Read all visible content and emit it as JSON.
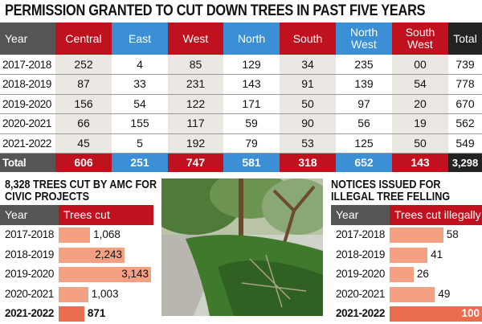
{
  "title": "PERMISSION GRANTED TO CUT DOWN TREES IN PAST FIVE YEARS",
  "colors": {
    "red": "#c0111f",
    "blue": "#3b8fd4",
    "gray": "#555555",
    "black": "#222222",
    "bar": "#f4a082",
    "bar_highlight": "#eb6d50"
  },
  "chart_data": [
    {
      "type": "table",
      "title": "PERMISSION GRANTED TO CUT DOWN TREES IN PAST FIVE YEARS",
      "columns": [
        "Year",
        "Central",
        "East",
        "West",
        "North",
        "South",
        "North West",
        "South West",
        "Total"
      ],
      "rows": [
        [
          "2017-2018",
          "252",
          "4",
          "85",
          "129",
          "34",
          "235",
          "00",
          "739"
        ],
        [
          "2018-2019",
          "87",
          "33",
          "231",
          "143",
          "91",
          "139",
          "54",
          "778"
        ],
        [
          "2019-2020",
          "156",
          "54",
          "122",
          "171",
          "50",
          "97",
          "20",
          "670"
        ],
        [
          "2020-2021",
          "66",
          "155",
          "117",
          "59",
          "90",
          "56",
          "19",
          "562"
        ],
        [
          "2021-2022",
          "45",
          "5",
          "192",
          "79",
          "53",
          "125",
          "50",
          "549"
        ]
      ],
      "total": [
        "Total",
        "606",
        "251",
        "747",
        "581",
        "318",
        "652",
        "143",
        "3,298"
      ]
    },
    {
      "type": "bar",
      "orientation": "horizontal",
      "title": "8,328 TREES CUT BY AMC FOR CIVIC PROJECTS",
      "xlabel": "Year",
      "ylabel": "Trees cut",
      "categories": [
        "2017-2018",
        "2018-2019",
        "2019-2020",
        "2020-2021",
        "2021-2022"
      ],
      "values": [
        1068,
        2243,
        3143,
        1003,
        871
      ],
      "labels": [
        "1,068",
        "2,243",
        "3,143",
        "1,003",
        "871"
      ],
      "highlight": "2021-2022"
    },
    {
      "type": "bar",
      "orientation": "horizontal",
      "title": "NOTICES ISSUED FOR ILLEGAL TREE FELLING",
      "xlabel": "Year",
      "ylabel": "Trees cut illegally",
      "categories": [
        "2017-2018",
        "2018-2019",
        "2019-2020",
        "2020-2021",
        "2021-2022"
      ],
      "values": [
        58,
        41,
        26,
        49,
        100
      ],
      "labels": [
        "58",
        "41",
        "26",
        "49",
        "100"
      ],
      "highlight": "2021-2022"
    }
  ],
  "left_title_1": "8,328 TREES CUT BY AMC FOR",
  "left_title_2": "CIVIC PROJECTS",
  "right_title_1": "NOTICES ISSUED FOR",
  "right_title_2": "ILLEGAL TREE FELLING",
  "photo": "felled-trees-photo"
}
